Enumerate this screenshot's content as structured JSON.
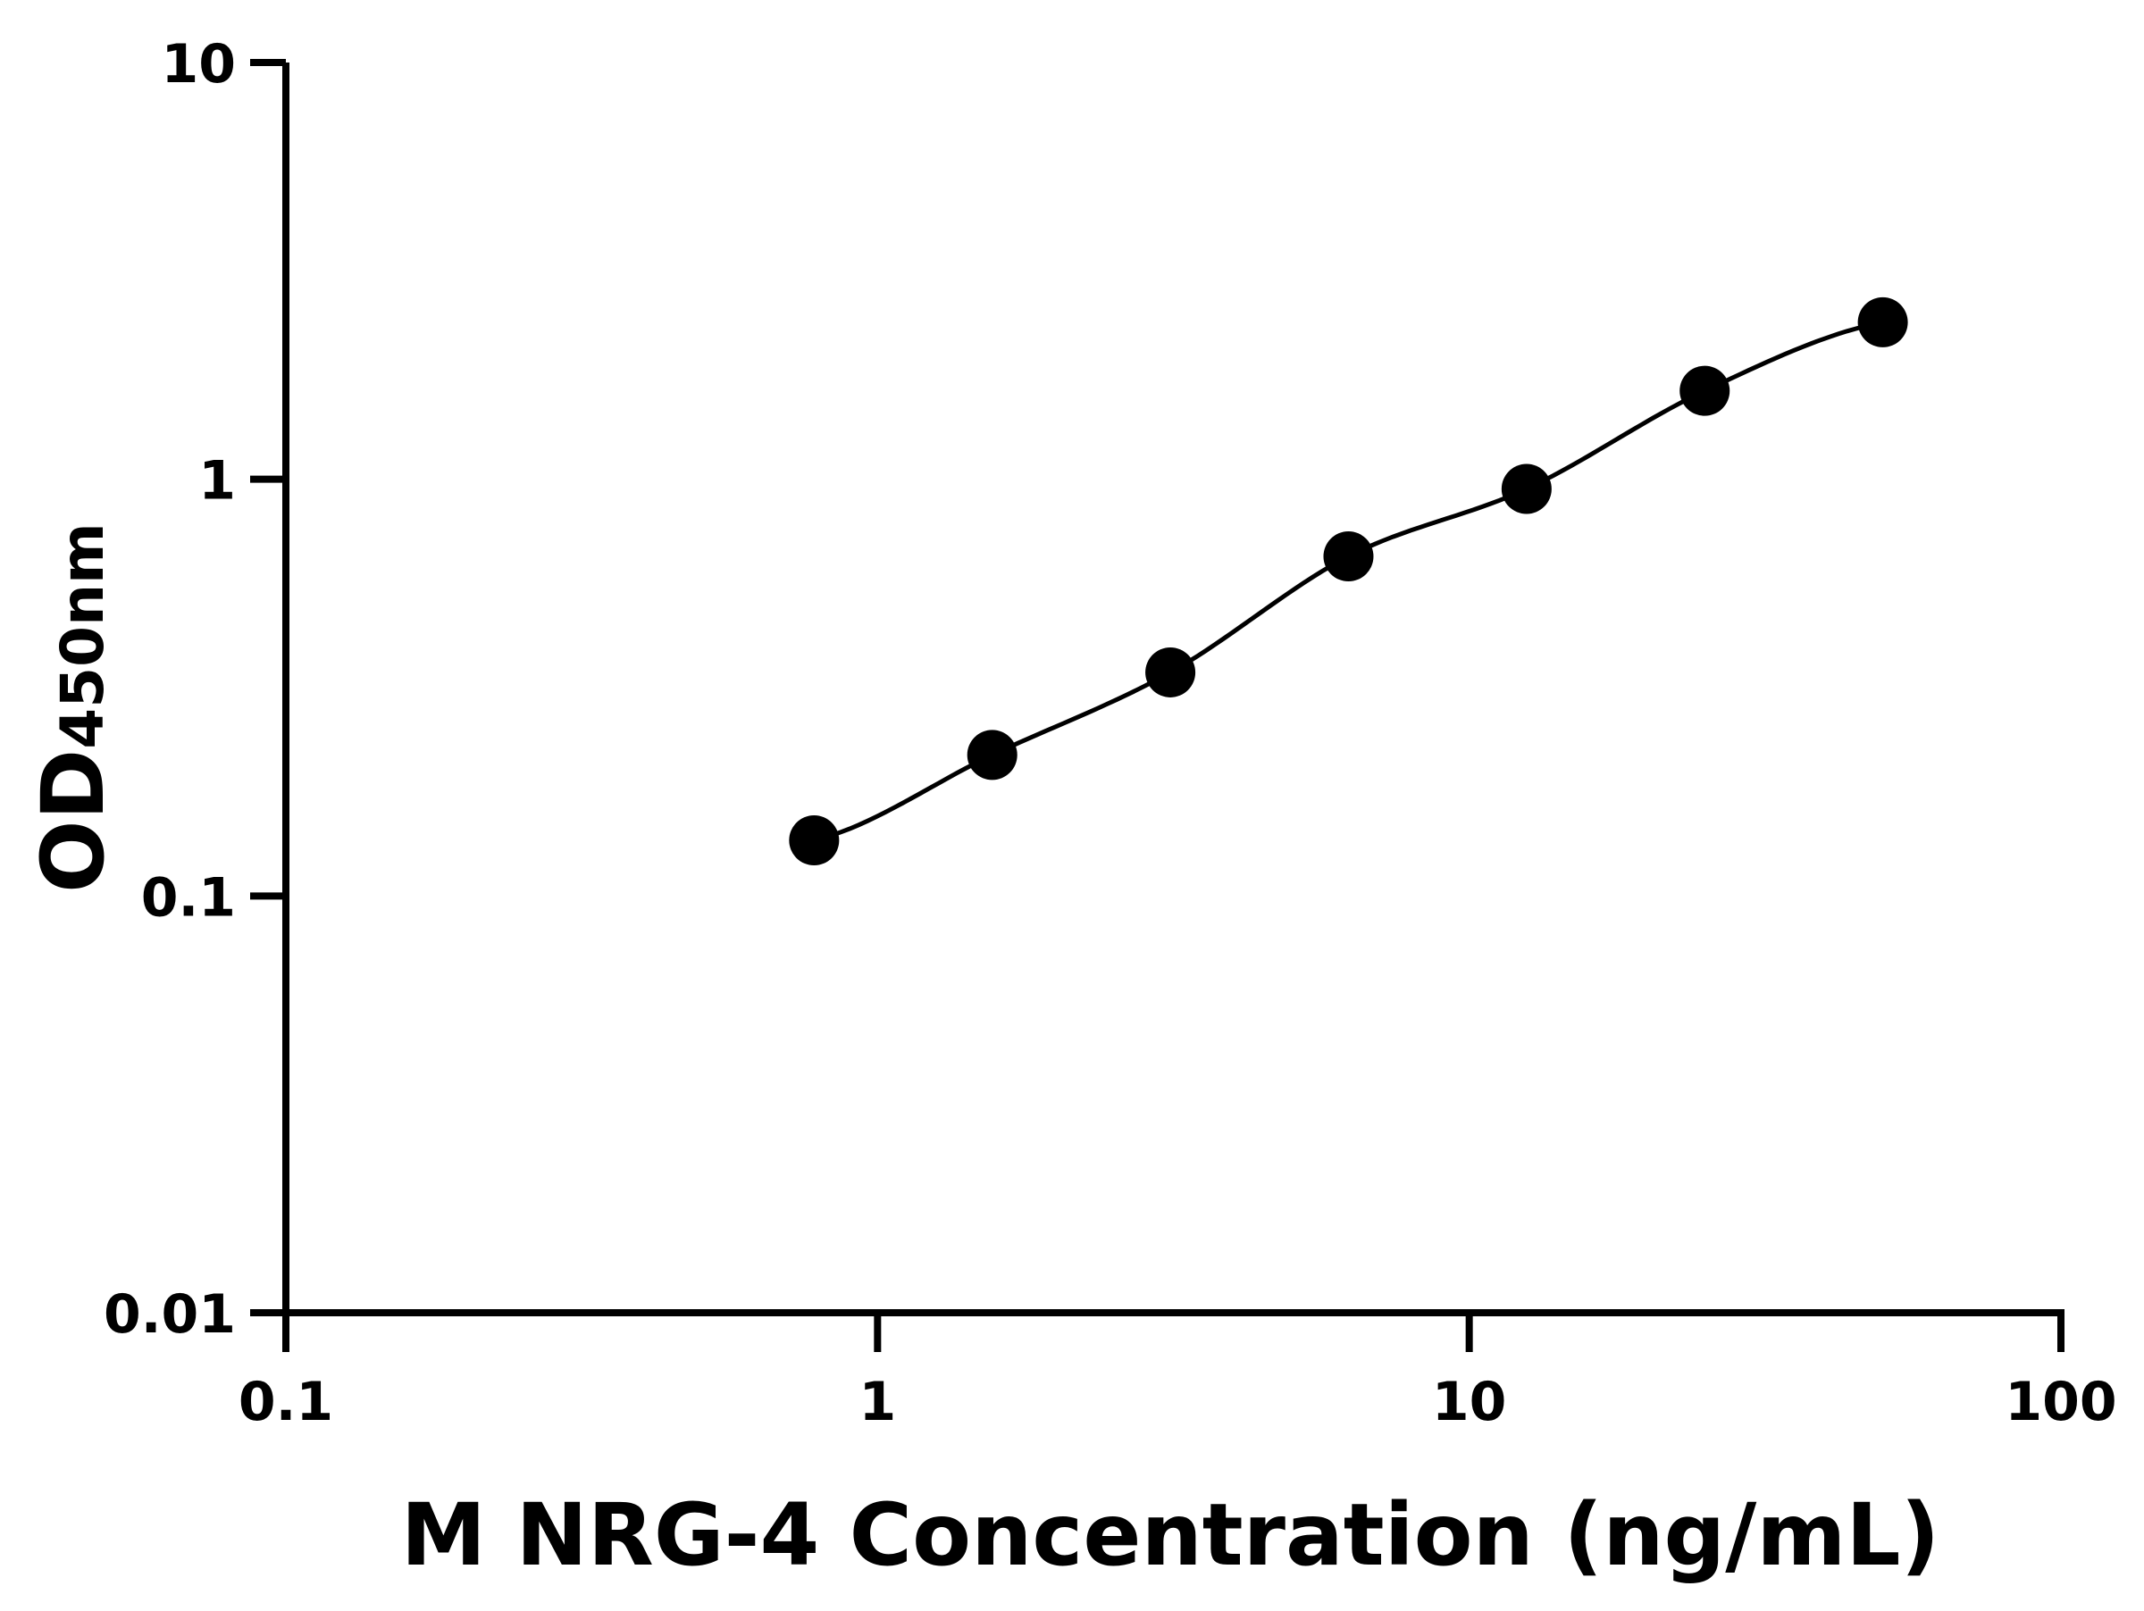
{
  "chart_data": {
    "type": "scatter",
    "title": "",
    "xlabel": "M NRG-4 Concentration (ng/mL)",
    "ylabel_main": "OD",
    "ylabel_sub": "450nm",
    "x_scale": "log",
    "y_scale": "log",
    "xlim": [
      0.1,
      100
    ],
    "ylim": [
      0.01,
      10
    ],
    "x_ticks": [
      0.1,
      1,
      10,
      100
    ],
    "x_tick_labels": [
      "0.1",
      "1",
      "10",
      "100"
    ],
    "y_ticks": [
      0.01,
      0.1,
      1,
      10
    ],
    "y_tick_labels": [
      "0.01",
      "0.1",
      "1",
      "10"
    ],
    "grid": false,
    "legend": "none",
    "fit_curve": true,
    "colors": {
      "points": "#000000",
      "line": "#000000"
    },
    "series": [
      {
        "x": [
          0.78125,
          1.5625,
          3.125,
          6.25,
          12.5,
          25,
          50
        ],
        "y": [
          0.136,
          0.218,
          0.344,
          0.653,
          0.948,
          1.63,
          2.38
        ]
      }
    ]
  }
}
